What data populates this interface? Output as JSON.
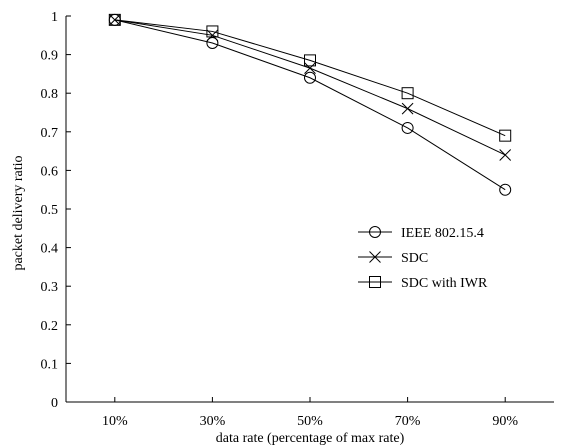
{
  "chart_data": {
    "type": "line",
    "title": "",
    "xlabel": "data rate (percentage of max rate)",
    "ylabel": "packet delivery ratio",
    "categories": [
      "10%",
      "30%",
      "50%",
      "70%",
      "90%"
    ],
    "ylim": [
      0,
      1
    ],
    "yticks": [
      0,
      0.1,
      0.2,
      0.3,
      0.4,
      0.5,
      0.6,
      0.7,
      0.8,
      0.9,
      1
    ],
    "ytick_labels": [
      "0",
      "0.1",
      "0.2",
      "0.3",
      "0.4",
      "0.5",
      "0.6",
      "0.7",
      "0.8",
      "0.9",
      "1"
    ],
    "grid": false,
    "legend_position": "center-right",
    "series": [
      {
        "name": "IEEE 802.15.4",
        "marker": "circle",
        "values": [
          0.99,
          0.93,
          0.84,
          0.71,
          0.55
        ]
      },
      {
        "name": "SDC",
        "marker": "x",
        "values": [
          0.99,
          0.95,
          0.865,
          0.76,
          0.64
        ]
      },
      {
        "name": "SDC with IWR",
        "marker": "square",
        "values": [
          0.99,
          0.96,
          0.885,
          0.8,
          0.69
        ]
      }
    ],
    "line_color": "#000000"
  }
}
